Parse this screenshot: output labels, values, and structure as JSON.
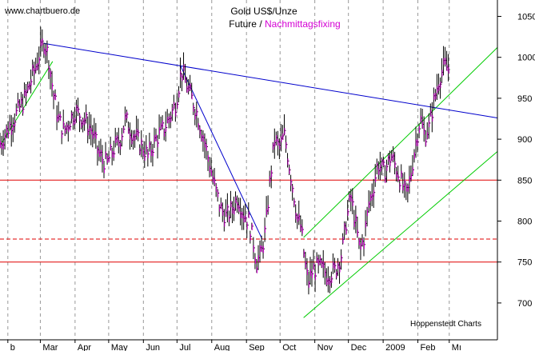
{
  "chart_data": {
    "type": "ohlc",
    "title": "Gold US$/Unze",
    "subtitle_part1": "Future / ",
    "subtitle_part2": "Nachmittagsfixing",
    "watermark": "www.chartbuero.de",
    "credit": "Hoppenstedt Charts",
    "ylabel": "",
    "xlabel": "",
    "ylim": [
      655,
      1070
    ],
    "y_ticks": [
      700,
      750,
      800,
      850,
      900,
      950,
      1000,
      1050
    ],
    "x_range_days": [
      -7,
      437
    ],
    "x_ticks": [
      {
        "label": "b",
        "day": 0
      },
      {
        "label": "Mar",
        "day": 29
      },
      {
        "label": "Apr",
        "day": 60
      },
      {
        "label": "May",
        "day": 90
      },
      {
        "label": "Jun",
        "day": 121
      },
      {
        "label": "Jul",
        "day": 151
      },
      {
        "label": "Aug",
        "day": 182
      },
      {
        "label": "Sep",
        "day": 213
      },
      {
        "label": "Oct",
        "day": 243
      },
      {
        "label": "Nov",
        "day": 274
      },
      {
        "label": "Dec",
        "day": 304
      },
      {
        "label": "2009",
        "day": 335
      },
      {
        "label": "Feb",
        "day": 366
      },
      {
        "label": "Mı",
        "day": 394
      }
    ],
    "grid": true,
    "colors": {
      "bars": "#000000",
      "fixing": "#d400d4",
      "horizontal_lines": "#e00000",
      "trend_lines": "#0000cc",
      "channel_lines": "#00cc00",
      "grid": "#999999",
      "title": "#000000",
      "subtitle_highlight": "#d400d4"
    },
    "price_path": [
      [
        -7,
        895
      ],
      [
        5,
        925
      ],
      [
        15,
        950
      ],
      [
        25,
        990
      ],
      [
        32,
        1020
      ],
      [
        36,
        1003
      ],
      [
        40,
        960
      ],
      [
        45,
        925
      ],
      [
        50,
        910
      ],
      [
        60,
        935
      ],
      [
        68,
        925
      ],
      [
        75,
        910
      ],
      [
        82,
        880
      ],
      [
        88,
        870
      ],
      [
        93,
        885
      ],
      [
        100,
        900
      ],
      [
        105,
        925
      ],
      [
        110,
        910
      ],
      [
        118,
        895
      ],
      [
        125,
        880
      ],
      [
        132,
        900
      ],
      [
        140,
        915
      ],
      [
        147,
        935
      ],
      [
        150,
        945
      ],
      [
        155,
        985
      ],
      [
        160,
        965
      ],
      [
        168,
        935
      ],
      [
        175,
        900
      ],
      [
        180,
        870
      ],
      [
        185,
        840
      ],
      [
        190,
        815
      ],
      [
        195,
        805
      ],
      [
        200,
        815
      ],
      [
        205,
        830
      ],
      [
        210,
        810
      ],
      [
        215,
        800
      ],
      [
        219,
        775
      ],
      [
        222,
        750
      ],
      [
        226,
        760
      ],
      [
        230,
        790
      ],
      [
        234,
        850
      ],
      [
        238,
        900
      ],
      [
        242,
        890
      ],
      [
        247,
        905
      ],
      [
        252,
        860
      ],
      [
        255,
        835
      ],
      [
        258,
        805
      ],
      [
        262,
        790
      ],
      [
        265,
        750
      ],
      [
        268,
        725
      ],
      [
        272,
        740
      ],
      [
        278,
        745
      ],
      [
        285,
        735
      ],
      [
        292,
        740
      ],
      [
        298,
        760
      ],
      [
        302,
        800
      ],
      [
        306,
        830
      ],
      [
        310,
        800
      ],
      [
        314,
        765
      ],
      [
        318,
        780
      ],
      [
        322,
        820
      ],
      [
        326,
        840
      ],
      [
        330,
        870
      ],
      [
        336,
        860
      ],
      [
        342,
        880
      ],
      [
        348,
        860
      ],
      [
        352,
        845
      ],
      [
        356,
        830
      ],
      [
        360,
        860
      ],
      [
        364,
        895
      ],
      [
        368,
        925
      ],
      [
        372,
        905
      ],
      [
        376,
        915
      ],
      [
        380,
        945
      ],
      [
        385,
        975
      ],
      [
        390,
        990
      ],
      [
        394,
        985
      ]
    ],
    "horizontal_lines": [
      {
        "price": 850,
        "style": "solid"
      },
      {
        "price": 778,
        "style": "dashed"
      },
      {
        "price": 750,
        "style": "solid"
      }
    ],
    "trend_lines": [
      {
        "from": [
          32,
          1017
        ],
        "to": [
          437,
          926
        ]
      },
      {
        "from": [
          154,
          990
        ],
        "to": [
          227,
          778
        ]
      }
    ],
    "channel_lines": [
      {
        "from": [
          -7,
          892
        ],
        "to": [
          40,
          995
        ]
      },
      {
        "from": [
          264,
          780
        ],
        "to": [
          437,
          1012
        ]
      },
      {
        "from": [
          264,
          682
        ],
        "to": [
          437,
          885
        ]
      }
    ]
  }
}
